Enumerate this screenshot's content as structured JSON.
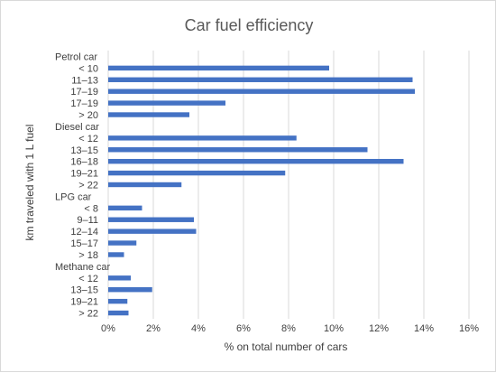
{
  "chart_data": {
    "type": "bar",
    "orientation": "horizontal",
    "title": "Car fuel efficiency",
    "xlabel": "% on total number of cars",
    "ylabel": "km traveled with 1 L fuel",
    "xlim": [
      0,
      16
    ],
    "x_ticks": [
      "0%",
      "2%",
      "4%",
      "6%",
      "8%",
      "10%",
      "12%",
      "14%",
      "16%"
    ],
    "grid": true,
    "legend": "none",
    "bar_color": "#4472c4",
    "groups": [
      {
        "name": "Petrol car",
        "categories": [
          "< 10",
          "11–13",
          "17–19",
          "17–19",
          "> 20"
        ],
        "values": [
          9.8,
          13.5,
          13.6,
          5.2,
          3.6
        ]
      },
      {
        "name": "Diesel car",
        "categories": [
          "< 12",
          "13–15",
          "16–18",
          "19–21",
          "> 22"
        ],
        "values": [
          8.35,
          11.5,
          13.1,
          7.85,
          3.25
        ]
      },
      {
        "name": "LPG car",
        "categories": [
          "< 8",
          "9–11",
          "12–14",
          "15–17",
          "> 18"
        ],
        "values": [
          1.5,
          3.8,
          3.9,
          1.25,
          0.7
        ]
      },
      {
        "name": "Methane car",
        "categories": [
          "< 12",
          "13–15",
          "19–21",
          "> 22"
        ],
        "values": [
          1.0,
          1.95,
          0.85,
          0.9
        ]
      }
    ]
  }
}
